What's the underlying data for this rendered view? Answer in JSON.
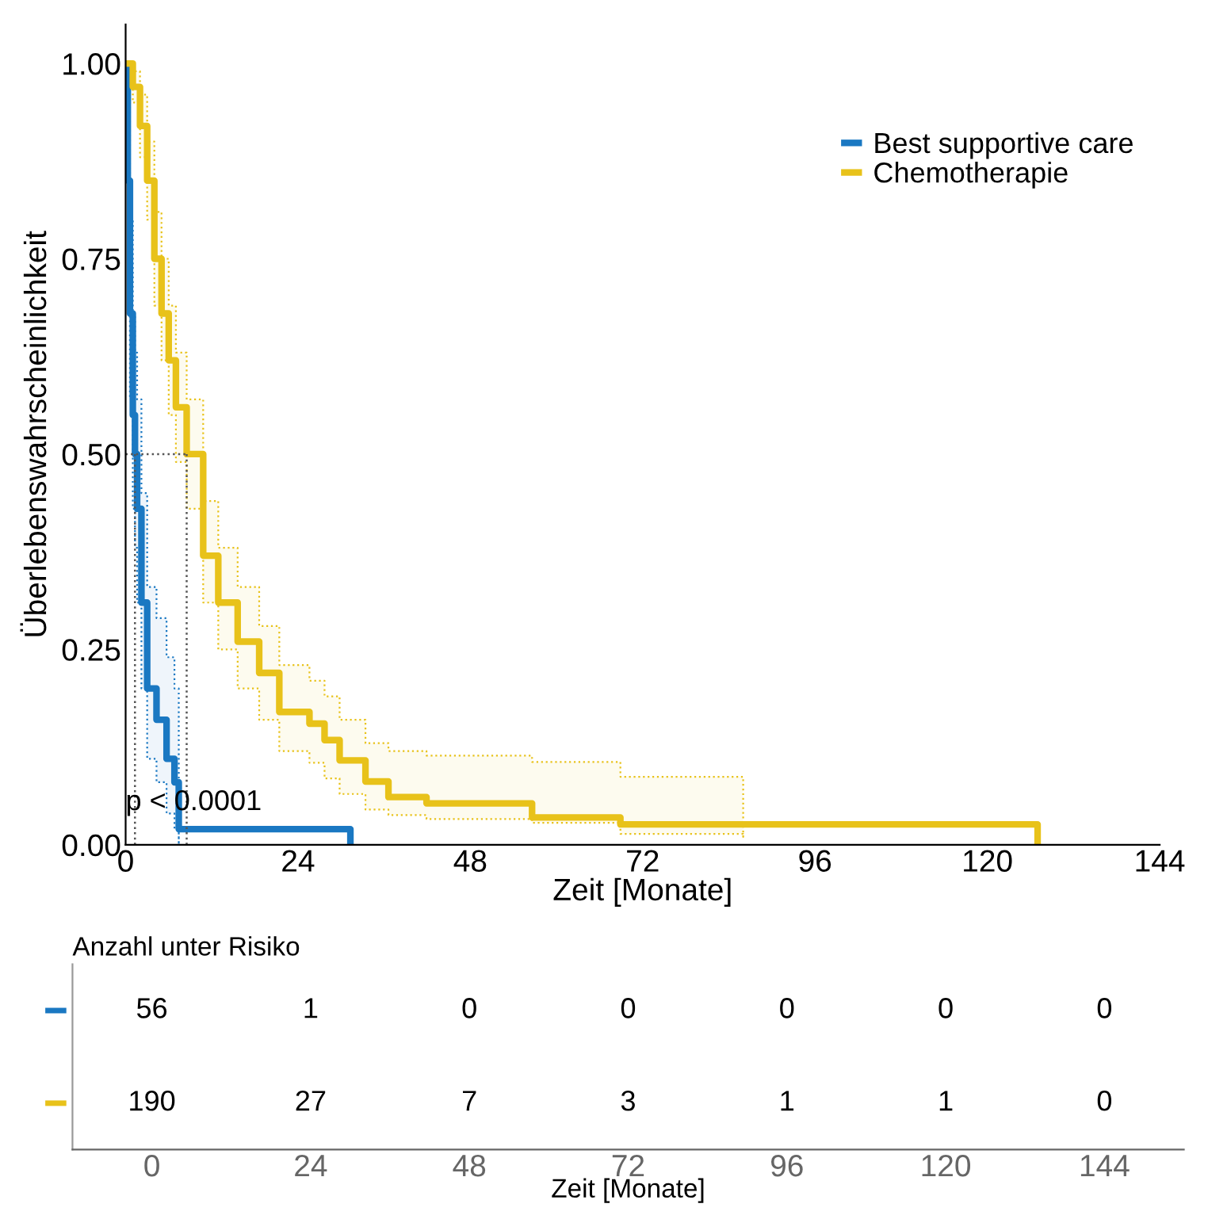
{
  "chart_data": [
    {
      "type": "step",
      "xlabel": "Zeit [Monate]",
      "ylabel": "Überlebenswahrscheinlichkeit",
      "xlim": [
        0,
        144
      ],
      "ylim": [
        0,
        1.05
      ],
      "xticks": [
        0,
        24,
        48,
        72,
        96,
        120,
        144
      ],
      "yticks": [
        {
          "value": 0,
          "label": "0.00"
        },
        {
          "value": 0.25,
          "label": "0.25"
        },
        {
          "value": 0.5,
          "label": "0.50"
        },
        {
          "value": 0.75,
          "label": "0.75"
        },
        {
          "value": 1,
          "label": "1.00"
        }
      ],
      "grid": false,
      "legend": "top right",
      "line_style": "solid",
      "annotations": [
        "p < 0.0001"
      ],
      "series": [
        {
          "name": "Best supportive care",
          "color": "#1a78c2",
          "x": [
            0,
            0.3,
            0.6,
            1.0,
            1.3,
            1.6,
            2.2,
            3.0,
            4.3,
            5.7,
            6.8,
            7.4,
            31.3
          ],
          "values": [
            1,
            0.85,
            0.68,
            0.55,
            0.5,
            0.43,
            0.31,
            0.2,
            0.16,
            0.11,
            0.08,
            0.02,
            0
          ],
          "lower": [
            1,
            0.76,
            0.57,
            0.43,
            0.38,
            0.31,
            0.2,
            0.11,
            0.08,
            0.04,
            0.02,
            0.0,
            null
          ],
          "upper": [
            1,
            0.95,
            0.8,
            0.68,
            0.63,
            0.57,
            0.45,
            0.33,
            0.29,
            0.24,
            0.2,
            0.14,
            null
          ]
        },
        {
          "name": "Chemotherapie",
          "color": "#e8c21a",
          "x": [
            0,
            1,
            2,
            3,
            4,
            5,
            6,
            7,
            8.5,
            10.8,
            12.9,
            15.6,
            18.6,
            21.4,
            25.6,
            27.7,
            29.8,
            33.4,
            36.6,
            41.9,
            56.6,
            68.9,
            86,
            127
          ],
          "values": [
            1,
            0.97,
            0.92,
            0.85,
            0.75,
            0.68,
            0.62,
            0.56,
            0.5,
            0.37,
            0.31,
            0.26,
            0.22,
            0.17,
            0.155,
            0.134,
            0.108,
            0.081,
            0.061,
            0.053,
            0.035,
            0.026,
            0.026,
            0
          ],
          "lower": [
            1,
            0.95,
            0.88,
            0.8,
            0.69,
            0.62,
            0.55,
            0.49,
            0.43,
            0.31,
            0.25,
            0.2,
            0.16,
            0.12,
            0.105,
            0.085,
            0.065,
            0.045,
            0.038,
            0.033,
            0.028,
            0.014,
            0.01,
            null
          ],
          "upper": [
            1,
            0.99,
            0.96,
            0.9,
            0.81,
            0.75,
            0.69,
            0.63,
            0.57,
            0.44,
            0.38,
            0.33,
            0.28,
            0.23,
            0.21,
            0.19,
            0.16,
            0.13,
            0.12,
            0.114,
            0.106,
            0.087,
            0.077,
            null
          ]
        },
        {
          "type": "line",
          "color": "#555555",
          "line_style": "dotted",
          "x": [
            0,
            8.5
          ],
          "values": [
            0.5,
            0.5
          ]
        },
        {
          "type": "line",
          "color": "#555555",
          "line_style": "dotted",
          "x": [
            1.3,
            1.3
          ],
          "values": [
            0,
            0.5
          ]
        },
        {
          "type": "line",
          "color": "#555555",
          "line_style": "dotted",
          "x": [
            8.5,
            8.5
          ],
          "values": [
            0,
            0.5
          ]
        }
      ]
    },
    {
      "type": "heatmap",
      "title": "Anzahl unter Risiko",
      "xlabel": "Zeit [Monate]",
      "categories": [
        "0",
        "24",
        "48",
        "72",
        "96",
        "120",
        "144"
      ],
      "y_categories": [
        null,
        null
      ],
      "colors": [
        "#1a78c2",
        "#e8c21a"
      ],
      "data_labels": true,
      "cells": [
        [
          56,
          1,
          0,
          0,
          0,
          0,
          0
        ],
        [
          190,
          27,
          7,
          3,
          1,
          1,
          0
        ]
      ]
    }
  ]
}
